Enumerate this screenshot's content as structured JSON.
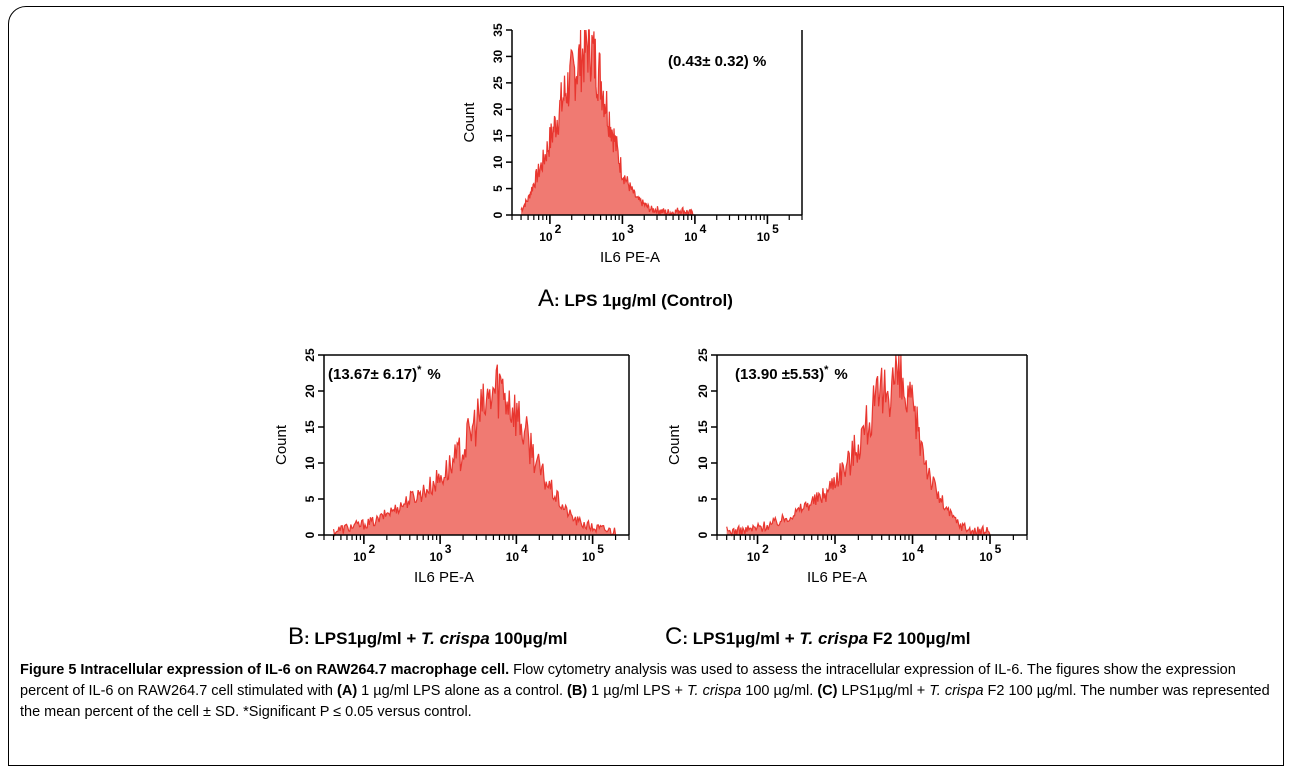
{
  "panels": [
    {
      "id": "A",
      "letter": "A",
      "condition_prefix": ": LPS 1µg/ml (Control)",
      "condition_italic": "",
      "condition_suffix": "",
      "annotation": "(0.43± 0.32) %",
      "annotation_sup": "",
      "xlabel": "IL6 PE-A",
      "ylabel": "Count"
    },
    {
      "id": "B",
      "letter": "B",
      "condition_prefix": ": LPS1µg/ml + ",
      "condition_italic": "T. crispa",
      "condition_suffix": " 100µg/ml",
      "annotation": "(13.67± 6.17)",
      "annotation_sup": "*",
      "annotation_unit": "%",
      "xlabel": "IL6 PE-A",
      "ylabel": "Count"
    },
    {
      "id": "C",
      "letter": "C",
      "condition_prefix": ": LPS1µg/ml + ",
      "condition_italic": "T. crispa",
      "condition_suffix": " F2 100µg/ml",
      "annotation": "(13.90 ±5.53)",
      "annotation_sup": "*",
      "annotation_unit": "%",
      "xlabel": "IL6 PE-A",
      "ylabel": "Count"
    }
  ],
  "caption": {
    "title": "Figure 5 Intracellular expression of IL-6 on RAW264.7 macrophage cell.",
    "t1": " Flow cytometry analysis was used to assess the intracellular expression of IL-6. The figures show the expression percent of IL-6 on RAW264.7 cell stimulated with ",
    "bA": "(A)",
    "t2": " 1 µg/ml LPS alone as a control. ",
    "bB": "(B)",
    "t3": " 1 µg/ml LPS + ",
    "i1": "T. crispa",
    "t4": " 100 µg/ml. ",
    "bC": "(C)",
    "t5": " LPS1µg/ml + ",
    "i2": "T. crispa",
    "t6": " F2 100 µg/ml. The number was represented the mean percent of the cell ± SD. *Significant P ≤ 0.05 versus control."
  },
  "chart_data": [
    {
      "type": "area",
      "panel": "A",
      "xlabel": "IL6 PE-A",
      "ylabel": "Count",
      "xscale": "log",
      "xlim": [
        30,
        300000
      ],
      "ylim": [
        0,
        35
      ],
      "xticks": [
        100,
        1000,
        10000,
        100000
      ],
      "xtick_labels": [
        "10^2",
        "10^3",
        "10^4",
        "10^5"
      ],
      "yticks": [
        0,
        5,
        10,
        15,
        20,
        25,
        30,
        35
      ],
      "color": "#e8362f",
      "fill": "#f07a72",
      "x": [
        40,
        50,
        60,
        80,
        100,
        130,
        160,
        200,
        250,
        300,
        350,
        400,
        500,
        600,
        700,
        850,
        1000,
        1300,
        1600,
        2000,
        2500,
        3000,
        4000,
        5000,
        6500,
        8000,
        10000
      ],
      "y": [
        1,
        3,
        6,
        10,
        14,
        19,
        23,
        26,
        29,
        31,
        33,
        30,
        26,
        21,
        17,
        12,
        8,
        5,
        3,
        2,
        1,
        1,
        0.5,
        0.5,
        1,
        0.5,
        0
      ]
    },
    {
      "type": "area",
      "panel": "B",
      "xlabel": "IL6 PE-A",
      "ylabel": "Count",
      "xscale": "log",
      "xlim": [
        30,
        300000
      ],
      "ylim": [
        0,
        25
      ],
      "xticks": [
        100,
        1000,
        10000,
        100000
      ],
      "xtick_labels": [
        "10^2",
        "10^3",
        "10^4",
        "10^5"
      ],
      "yticks": [
        0,
        5,
        10,
        15,
        20,
        25
      ],
      "color": "#e8362f",
      "fill": "#f07a72",
      "x": [
        40,
        60,
        100,
        150,
        200,
        300,
        400,
        600,
        800,
        1000,
        1500,
        2000,
        2500,
        3000,
        4000,
        5000,
        6000,
        7000,
        8000,
        10000,
        13000,
        16000,
        20000,
        30000,
        40000,
        60000,
        100000,
        200000
      ],
      "y": [
        0.5,
        1,
        1.5,
        2,
        3,
        4,
        5,
        6,
        7,
        8,
        10,
        12,
        14,
        16,
        18,
        20,
        21,
        20,
        19,
        17,
        14,
        12,
        9,
        6,
        4,
        2,
        1,
        0.5
      ]
    },
    {
      "type": "area",
      "panel": "C",
      "xlabel": "IL6 PE-A",
      "ylabel": "Count",
      "xscale": "log",
      "xlim": [
        30,
        300000
      ],
      "ylim": [
        0,
        25
      ],
      "xticks": [
        100,
        1000,
        10000,
        100000
      ],
      "xtick_labels": [
        "10^2",
        "10^3",
        "10^4",
        "10^5"
      ],
      "yticks": [
        0,
        5,
        10,
        15,
        20,
        25
      ],
      "color": "#e8362f",
      "fill": "#f07a72",
      "x": [
        40,
        60,
        100,
        150,
        200,
        300,
        400,
        600,
        800,
        1000,
        1500,
        2000,
        2500,
        3000,
        4000,
        5000,
        6000,
        7000,
        8000,
        10000,
        13000,
        16000,
        20000,
        30000,
        40000,
        60000,
        100000
      ],
      "y": [
        0.5,
        0.5,
        1,
        1.5,
        2,
        3,
        4,
        5,
        6,
        8,
        10,
        13,
        15,
        17,
        19,
        21,
        22,
        21,
        19,
        17,
        13,
        9,
        6,
        3,
        1.5,
        0.5,
        0.5
      ]
    }
  ]
}
